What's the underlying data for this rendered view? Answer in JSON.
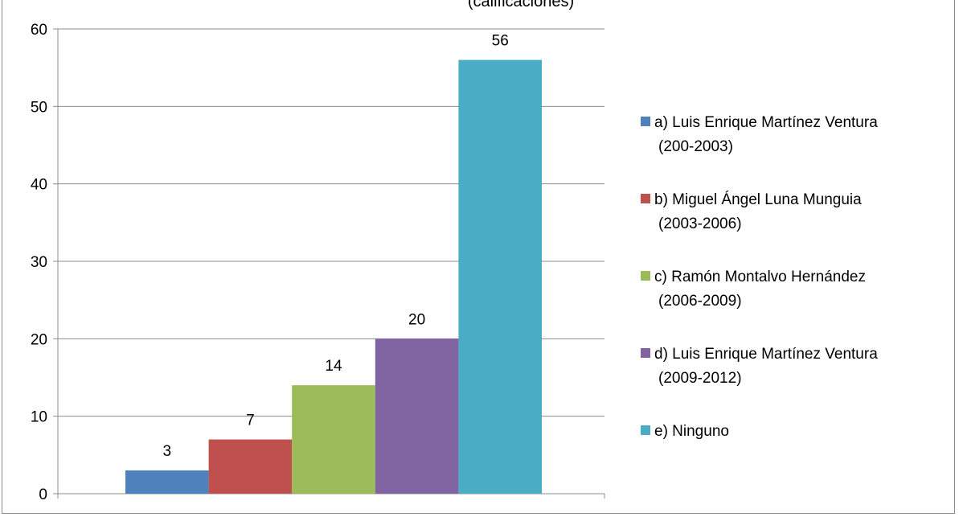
{
  "chart_data": {
    "type": "bar",
    "title_fragment": "(calificaciones)",
    "categories": [
      "a) Luis Enrique Martínez Ventura (200-2003)",
      "b) Miguel Ángel Luna Munguia (2003-2006)",
      "c) Ramón Montalvo Hernández (2006-2009)",
      "d) Luis Enrique Martínez Ventura (2009-2012)",
      "e) Ninguno"
    ],
    "values": [
      3,
      7,
      14,
      20,
      56
    ],
    "data_labels": [
      "3",
      "7",
      "14",
      "20",
      "56"
    ],
    "colors": [
      "#4f81bd",
      "#c0504d",
      "#9bbb59",
      "#8064a2",
      "#4bacc6"
    ],
    "ylim": [
      0,
      60
    ],
    "yticks": [
      "0",
      "10",
      "20",
      "30",
      "40",
      "50",
      "60"
    ],
    "grid": true,
    "legend": {
      "placement": "right",
      "entries": [
        {
          "line1": "a) Luis Enrique Martínez Ventura",
          "line2": "(200-2003)"
        },
        {
          "line1": "b) Miguel Ángel Luna Munguia",
          "line2": "(2003-2006)"
        },
        {
          "line1": "c) Ramón Montalvo Hernández",
          "line2": "(2006-2009)"
        },
        {
          "line1": "d) Luis Enrique Martínez Ventura",
          "line2": "(2009-2012)"
        },
        {
          "line1": "e) Ninguno",
          "line2": ""
        }
      ]
    }
  }
}
